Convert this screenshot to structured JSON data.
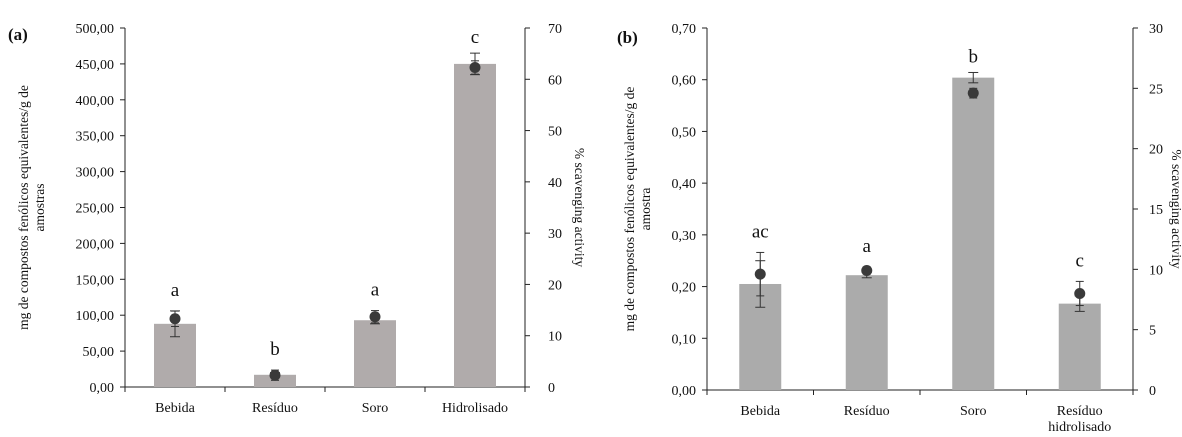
{
  "chart_data": [
    {
      "type": "bar",
      "panel_label": "(a)",
      "categories": [
        "Bebida",
        "Resíduo",
        "Soro",
        "Hidrolisado"
      ],
      "ylabel": "mg de compostos fenólicos equivalentes/g de amostras",
      "y2label": "% scavenging activity",
      "ylim": [
        0,
        500
      ],
      "yticks": [
        "0,00",
        "50,00",
        "100,00",
        "150,00",
        "200,00",
        "250,00",
        "300,00",
        "350,00",
        "400,00",
        "450,00",
        "500,00"
      ],
      "y2lim": [
        0,
        70
      ],
      "y2ticks": [
        "0",
        "10",
        "20",
        "30",
        "40",
        "50",
        "60",
        "70"
      ],
      "bars": {
        "values": [
          88,
          17,
          93,
          450
        ],
        "errors": [
          18,
          3,
          5,
          15
        ],
        "color": "#b0abab"
      },
      "scatter": {
        "values": [
          13.3,
          2.3,
          13.7,
          62.3
        ],
        "errors": [
          1.5,
          1.0,
          1.2,
          1.3
        ],
        "color": "#3a3a3a"
      },
      "letters": [
        "a",
        "b",
        "a",
        "c"
      ],
      "grid": false,
      "legend": "none"
    },
    {
      "type": "bar",
      "panel_label": "(b)",
      "categories": [
        "Bebida",
        "Resíduo",
        "Soro",
        "Resíduo hidrolisado"
      ],
      "ylabel": "mg de compostos fenólicos equivalentes/g de amostra",
      "y2label": "% scavenging activity",
      "ylim": [
        0,
        0.7
      ],
      "yticks": [
        "0,00",
        "0,10",
        "0,20",
        "0,30",
        "0,40",
        "0,50",
        "0,60",
        "0,70"
      ],
      "y2lim": [
        0,
        30
      ],
      "y2ticks": [
        "0",
        "5",
        "10",
        "15",
        "20",
        "25",
        "30"
      ],
      "bars": {
        "values": [
          0.205,
          0.222,
          0.604,
          0.167
        ],
        "errors": [
          0.045,
          0.005,
          0.01,
          0.015
        ],
        "color": "#ababab"
      },
      "scatter": {
        "values": [
          9.6,
          9.9,
          24.6,
          8.0
        ],
        "errors": [
          1.8,
          0.3,
          0.4,
          1.0
        ],
        "color": "#3a3a3a"
      },
      "letters": [
        "ac",
        "a",
        "b",
        "c"
      ],
      "grid": false,
      "legend": "none"
    }
  ]
}
